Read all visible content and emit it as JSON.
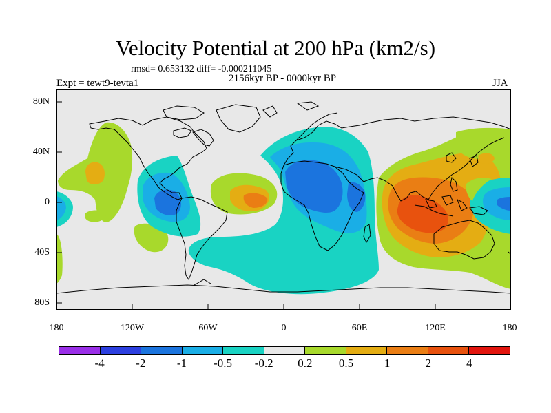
{
  "title": "Velocity Potential at 200 hPa (km2/s)",
  "stats": "rmsd= 0.653132 diff= -0.000211045",
  "period": "2156kyr BP - 0000kyr BP",
  "expt": "Expt = tewt9-tevta1",
  "season": "JJA",
  "lat_labels": [
    "80N",
    "40N",
    "0",
    "40S",
    "80S"
  ],
  "lon_labels": [
    "180",
    "120W",
    "60W",
    "0",
    "60E",
    "120E",
    "180"
  ],
  "colorbar": {
    "colors": [
      "#9a2fe8",
      "#2c3fe0",
      "#1b74de",
      "#1aaee6",
      "#19d3c3",
      "#e8e8e8",
      "#a8d92c",
      "#e4ad13",
      "#ea7e14",
      "#e8520e",
      "#e2150e"
    ],
    "labels": [
      "-4",
      "-2",
      "-1",
      "-0.5",
      "-0.2",
      "0.2",
      "0.5",
      "1",
      "2",
      "4"
    ]
  }
}
